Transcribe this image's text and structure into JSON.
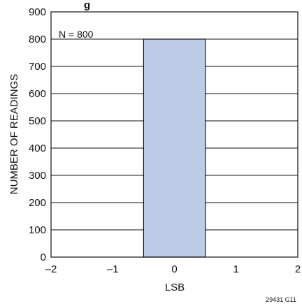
{
  "chart_data": {
    "type": "bar",
    "title_partial": "g",
    "xlabel": "LSB",
    "ylabel": "NUMBER OF READINGS",
    "annotation": "N = 800",
    "figure_id": "29431 G11",
    "xlim": [
      -2,
      2
    ],
    "ylim": [
      0,
      900
    ],
    "x_ticks": [
      "–2",
      "–1",
      "0",
      "1",
      "2"
    ],
    "x_tick_values": [
      -2,
      -1,
      0,
      1,
      2
    ],
    "y_ticks": [
      "0",
      "100",
      "200",
      "300",
      "400",
      "500",
      "600",
      "700",
      "800",
      "900"
    ],
    "y_tick_values": [
      0,
      100,
      200,
      300,
      400,
      500,
      600,
      700,
      800,
      900
    ],
    "bars": [
      {
        "x_start": -0.5,
        "x_end": 0.5,
        "value": 800
      }
    ],
    "grid": true,
    "bar_color": "#bccbe6"
  }
}
